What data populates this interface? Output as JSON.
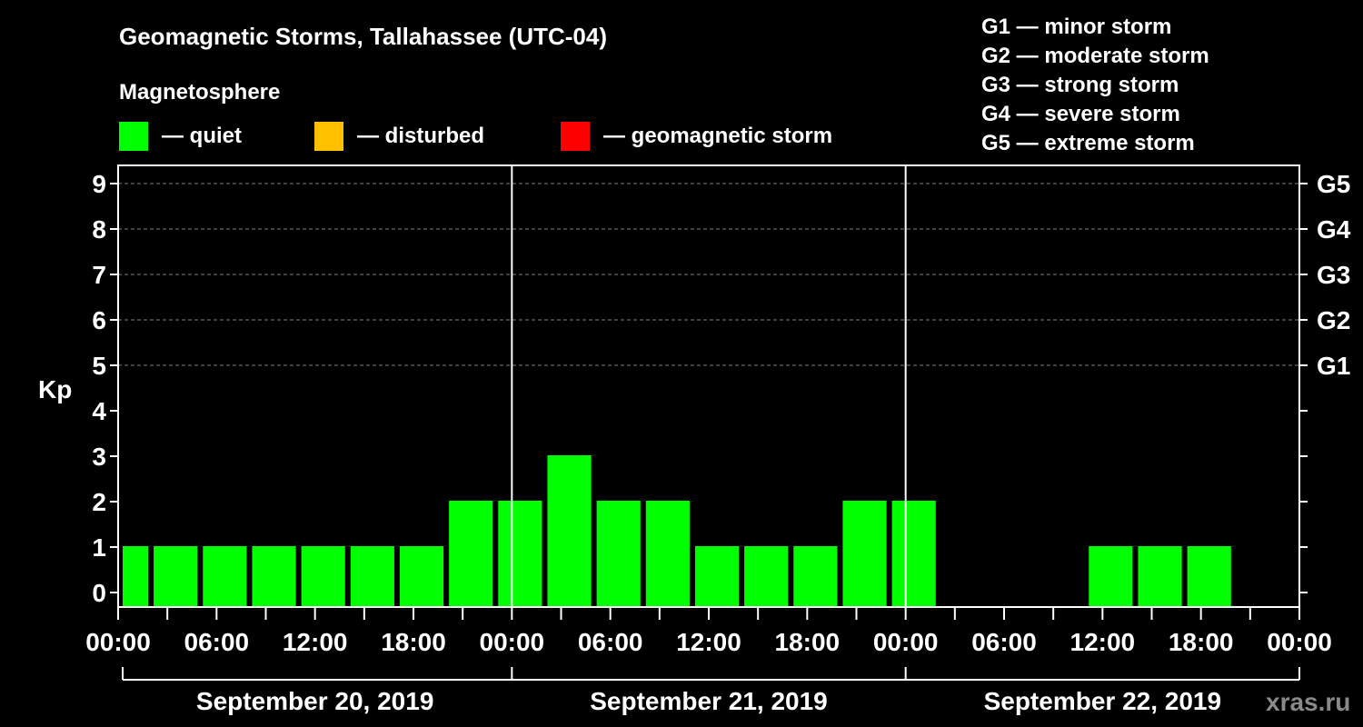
{
  "title": "Geomagnetic Storms, Tallahassee (UTC-04)",
  "legend": {
    "heading": "Magnetosphere",
    "items": [
      {
        "label": "— quiet",
        "color": "#00ff00"
      },
      {
        "label": "— disturbed",
        "color": "#ffc000"
      },
      {
        "label": "— geomagnetic storm",
        "color": "#ff0000"
      }
    ]
  },
  "g_scale": [
    "G1 — minor storm",
    "G2 — moderate storm",
    "G3 — strong storm",
    "G4 — severe storm",
    "G5 — extreme storm"
  ],
  "watermark": "xras.ru",
  "colors": {
    "background": "#000000",
    "axis": "#ffffff",
    "grid": "#808080",
    "quiet": "#00ff00"
  },
  "chart_data": {
    "type": "bar",
    "title": "Geomagnetic Storms, Tallahassee (UTC-04)",
    "ylabel": "Kp",
    "ylim": [
      0,
      9
    ],
    "y_ticks": [
      "0",
      "1",
      "2",
      "3",
      "4",
      "5",
      "6",
      "7",
      "8",
      "9"
    ],
    "g_axis": [
      {
        "kp": 5,
        "label": "G1"
      },
      {
        "kp": 6,
        "label": "G2"
      },
      {
        "kp": 7,
        "label": "G3"
      },
      {
        "kp": 8,
        "label": "G4"
      },
      {
        "kp": 9,
        "label": "G5"
      }
    ],
    "grid_lines_kp": [
      5,
      6,
      7,
      8,
      9
    ],
    "x_hours_range": [
      0,
      72
    ],
    "bar_interval_hours": 3,
    "x_tick_labels": [
      {
        "hour": 0,
        "label": "00:00"
      },
      {
        "hour": 6,
        "label": "06:00"
      },
      {
        "hour": 12,
        "label": "12:00"
      },
      {
        "hour": 18,
        "label": "18:00"
      },
      {
        "hour": 24,
        "label": "00:00"
      },
      {
        "hour": 30,
        "label": "06:00"
      },
      {
        "hour": 36,
        "label": "12:00"
      },
      {
        "hour": 42,
        "label": "18:00"
      },
      {
        "hour": 48,
        "label": "00:00"
      },
      {
        "hour": 54,
        "label": "06:00"
      },
      {
        "hour": 60,
        "label": "12:00"
      },
      {
        "hour": 66,
        "label": "18:00"
      },
      {
        "hour": 72,
        "label": "00:00"
      }
    ],
    "days": [
      {
        "label": "September 20, 2019",
        "start_hour": 0
      },
      {
        "label": "September 21, 2019",
        "start_hour": 24
      },
      {
        "label": "September 22, 2019",
        "start_hour": 48
      }
    ],
    "bars": [
      {
        "start_hour": -1,
        "kp": 1,
        "status": "quiet"
      },
      {
        "start_hour": 2,
        "kp": 1,
        "status": "quiet"
      },
      {
        "start_hour": 5,
        "kp": 1,
        "status": "quiet"
      },
      {
        "start_hour": 8,
        "kp": 1,
        "status": "quiet"
      },
      {
        "start_hour": 11,
        "kp": 1,
        "status": "quiet"
      },
      {
        "start_hour": 14,
        "kp": 1,
        "status": "quiet"
      },
      {
        "start_hour": 17,
        "kp": 1,
        "status": "quiet"
      },
      {
        "start_hour": 20,
        "kp": 2,
        "status": "quiet"
      },
      {
        "start_hour": 23,
        "kp": 2,
        "status": "quiet"
      },
      {
        "start_hour": 26,
        "kp": 3,
        "status": "quiet"
      },
      {
        "start_hour": 29,
        "kp": 2,
        "status": "quiet"
      },
      {
        "start_hour": 32,
        "kp": 2,
        "status": "quiet"
      },
      {
        "start_hour": 35,
        "kp": 1,
        "status": "quiet"
      },
      {
        "start_hour": 38,
        "kp": 1,
        "status": "quiet"
      },
      {
        "start_hour": 41,
        "kp": 1,
        "status": "quiet"
      },
      {
        "start_hour": 44,
        "kp": 2,
        "status": "quiet"
      },
      {
        "start_hour": 47,
        "kp": 2,
        "status": "quiet"
      },
      {
        "start_hour": 59,
        "kp": 1,
        "status": "quiet"
      },
      {
        "start_hour": 62,
        "kp": 1,
        "status": "quiet"
      },
      {
        "start_hour": 65,
        "kp": 1,
        "status": "quiet"
      }
    ]
  }
}
